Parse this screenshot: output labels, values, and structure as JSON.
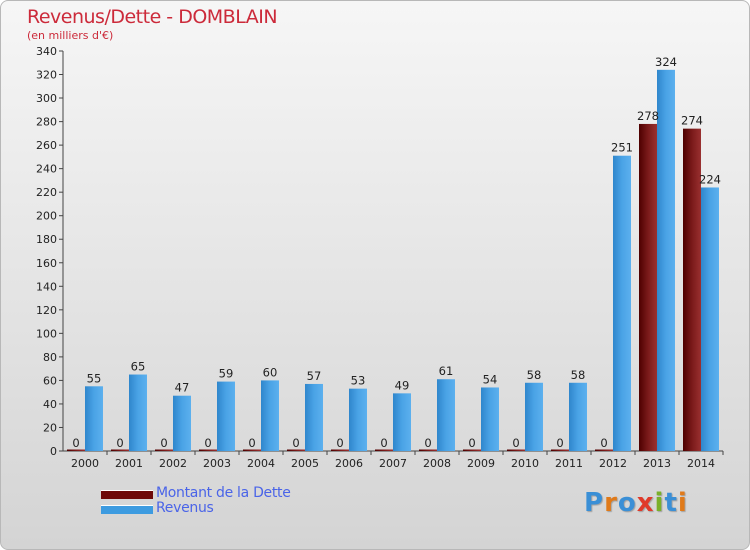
{
  "title": "Revenus/Dette - DOMBLAIN",
  "subtitle": "(en milliers d'€)",
  "logo": {
    "text": "Proxiti",
    "letter_colors": [
      "#3a8fd6",
      "#e07a1a",
      "#3a8fd6",
      "#e03a2a",
      "#7ab02a",
      "#3a8fd6",
      "#e07a1a"
    ]
  },
  "colors": {
    "dette": "#6e0a0a",
    "revenus": "#3d9be0",
    "title": "#cc2a3a",
    "legend_text": "#4a64e8"
  },
  "chart_data": {
    "type": "bar",
    "title": "Revenus/Dette - DOMBLAIN",
    "ylabel": "(en milliers d'€)",
    "ylim": [
      0,
      340
    ],
    "ytick_step": 20,
    "grid": false,
    "legend_position": "bottom-left",
    "categories": [
      "2000",
      "2001",
      "2002",
      "2003",
      "2004",
      "2005",
      "2006",
      "2007",
      "2008",
      "2009",
      "2010",
      "2011",
      "2012",
      "2013",
      "2014"
    ],
    "series": [
      {
        "name": "Montant de la Dette",
        "color": "#6e0a0a",
        "values": [
          0,
          0,
          0,
          0,
          0,
          0,
          0,
          0,
          0,
          0,
          0,
          0,
          0,
          278,
          274
        ]
      },
      {
        "name": "Revenus",
        "color": "#3d9be0",
        "values": [
          55,
          65,
          47,
          59,
          60,
          57,
          53,
          49,
          61,
          54,
          58,
          58,
          251,
          324,
          224
        ]
      }
    ]
  }
}
